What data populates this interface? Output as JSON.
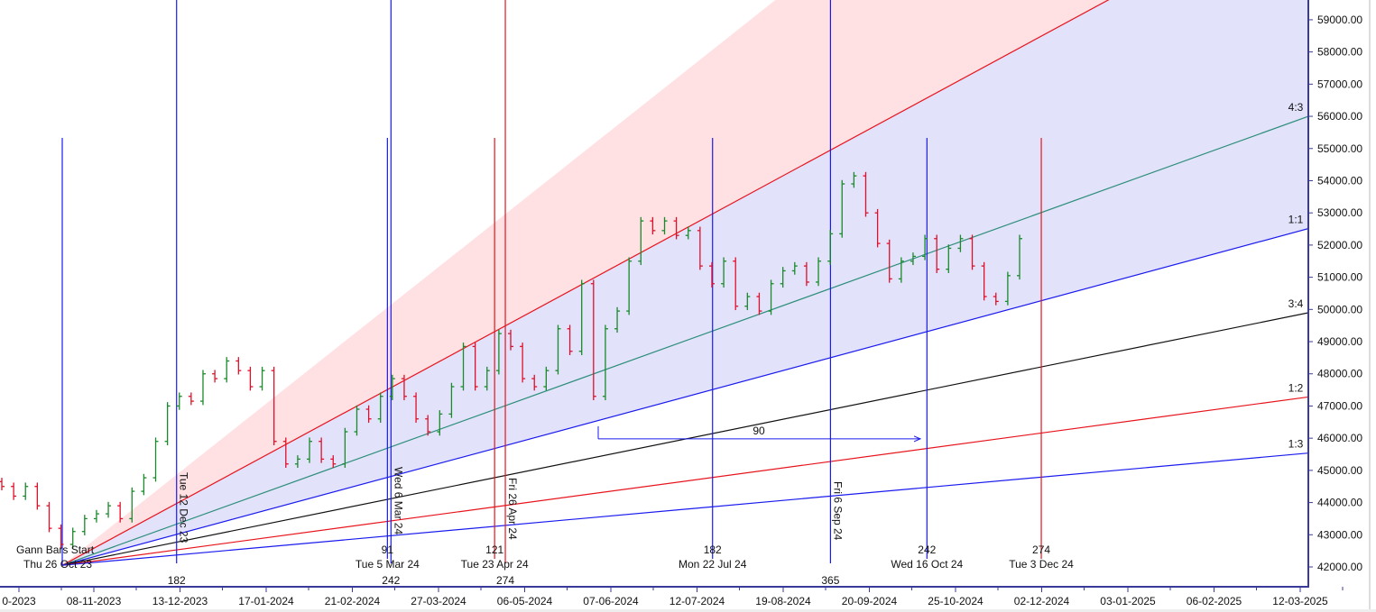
{
  "chart_data": {
    "type": "ohlc-bar-with-gann-fan",
    "price_axis": {
      "ticks": [
        42000,
        43000,
        44000,
        45000,
        46000,
        47000,
        48000,
        49000,
        50000,
        51000,
        52000,
        53000,
        54000,
        55000,
        56000,
        57000,
        58000,
        59000
      ],
      "tick_labels": [
        "42000.00",
        "43000.00",
        "44000.00",
        "45000.00",
        "46000.00",
        "47000.00",
        "48000.00",
        "49000.00",
        "50000.00",
        "51000.00",
        "52000.00",
        "53000.00",
        "54000.00",
        "55000.00",
        "56000.00",
        "57000.00",
        "58000.00",
        "59000.00"
      ]
    },
    "date_axis": {
      "tick_labels": [
        "0-2023",
        "08-11-2023",
        "13-12-2023",
        "17-01-2024",
        "21-02-2024",
        "27-03-2024",
        "06-05-2024",
        "07-06-2024",
        "12-07-2024",
        "19-08-2024",
        "20-09-2024",
        "25-10-2024",
        "02-12-2024",
        "03-01-2025",
        "06-02-2025",
        "12-03-2025"
      ]
    },
    "price_closes": [
      44500,
      44200,
      44500,
      43900,
      43200,
      42700,
      43100,
      43500,
      43650,
      43900,
      43500,
      44350,
      44770,
      45900,
      47000,
      47300,
      47150,
      48000,
      47850,
      48400,
      48100,
      47600,
      48100,
      45900,
      45200,
      45350,
      45900,
      45350,
      45200,
      46200,
      46900,
      46600,
      47300,
      47850,
      47300,
      46600,
      46200,
      46750,
      47600,
      48850,
      47600,
      48100,
      49250,
      48850,
      47850,
      47600,
      48100,
      49400,
      48700,
      50800,
      47300,
      49400,
      49950,
      51500,
      52750,
      52450,
      52750,
      52300,
      52450,
      51350,
      50800,
      51500,
      50100,
      50400,
      49950,
      50800,
      51200,
      51350,
      50850,
      51500,
      52350,
      53900,
      54150,
      53000,
      52050,
      50950,
      51500,
      51650,
      52200,
      51250,
      51900,
      52200,
      51350,
      50400,
      50250,
      51050,
      52200
    ],
    "colors": {
      "up": "#1a8a2a",
      "down": "#e0102a"
    },
    "gann_fan": {
      "start_label": "Gann Bars Start",
      "start_date": "Thu 26 Oct 23",
      "start_price": 42050,
      "lines": [
        {
          "ratio": "3:1",
          "points_per_bar": 88,
          "color": "#ffd6d6",
          "label": ""
        },
        {
          "ratio": "2:1",
          "points_per_bar": 60,
          "color": "#e8141c",
          "label": ""
        },
        {
          "ratio": "4:3",
          "points_per_bar": 40,
          "color": "#2f8f7a",
          "label": "4:3"
        },
        {
          "ratio": "1:1",
          "points_per_bar": 30,
          "color": "#1a1aee",
          "label": "1:1"
        },
        {
          "ratio": "3:4",
          "points_per_bar": 22.5,
          "color": "#111111",
          "label": "3:4"
        },
        {
          "ratio": "1:2",
          "points_per_bar": 15,
          "color": "#e8141c",
          "label": "1:2"
        },
        {
          "ratio": "1:3",
          "points_per_bar": 10,
          "color": "#1a1aee",
          "label": "1:3"
        }
      ],
      "fill_colors": {
        "upper": "#ffe0e3",
        "lower": "#e2e2fb"
      }
    },
    "time_markers": [
      {
        "bars": 0,
        "color": "#1a1aee",
        "count": "",
        "date": "",
        "rotated": "",
        "full": false
      },
      {
        "bars": 32,
        "color": "#1a1aee",
        "count": "182",
        "date": "",
        "rotated": "Tue 12 Dec 23",
        "full": true
      },
      {
        "bars": 91,
        "color": "#1a1aee",
        "count": "91",
        "date": "Tue 5 Mar 24",
        "rotated": "",
        "full": false
      },
      {
        "bars": 92,
        "color": "#1a1aee",
        "count": "242",
        "date": "",
        "rotated": "Wed 6 Mar 24",
        "full": true
      },
      {
        "bars": 121,
        "color": "#e8141c",
        "count": "121",
        "date": "Tue 23 Apr 24",
        "rotated": "",
        "full": false
      },
      {
        "bars": 124,
        "color": "#e8141c",
        "count": "274",
        "date": "",
        "rotated": "Fri 26 Apr 24",
        "full": true
      },
      {
        "bars": 182,
        "color": "#1a1aee",
        "count": "182",
        "date": "Mon 22 Jul 24",
        "rotated": "",
        "full": false
      },
      {
        "bars": 215,
        "color": "#1a1aee",
        "count": "365",
        "date": "",
        "rotated": "Fri 6 Sep 24",
        "full": true
      },
      {
        "bars": 242,
        "color": "#1a1aee",
        "count": "242",
        "date": "Wed 16 Oct 24",
        "rotated": "",
        "full": false
      },
      {
        "bars": 274,
        "color": "#e8141c",
        "count": "274",
        "date": "Tue 3 Dec 24",
        "rotated": "",
        "full": false
      }
    ],
    "measure": {
      "label": "90",
      "price": 45980,
      "color": "#1a1aee"
    }
  }
}
